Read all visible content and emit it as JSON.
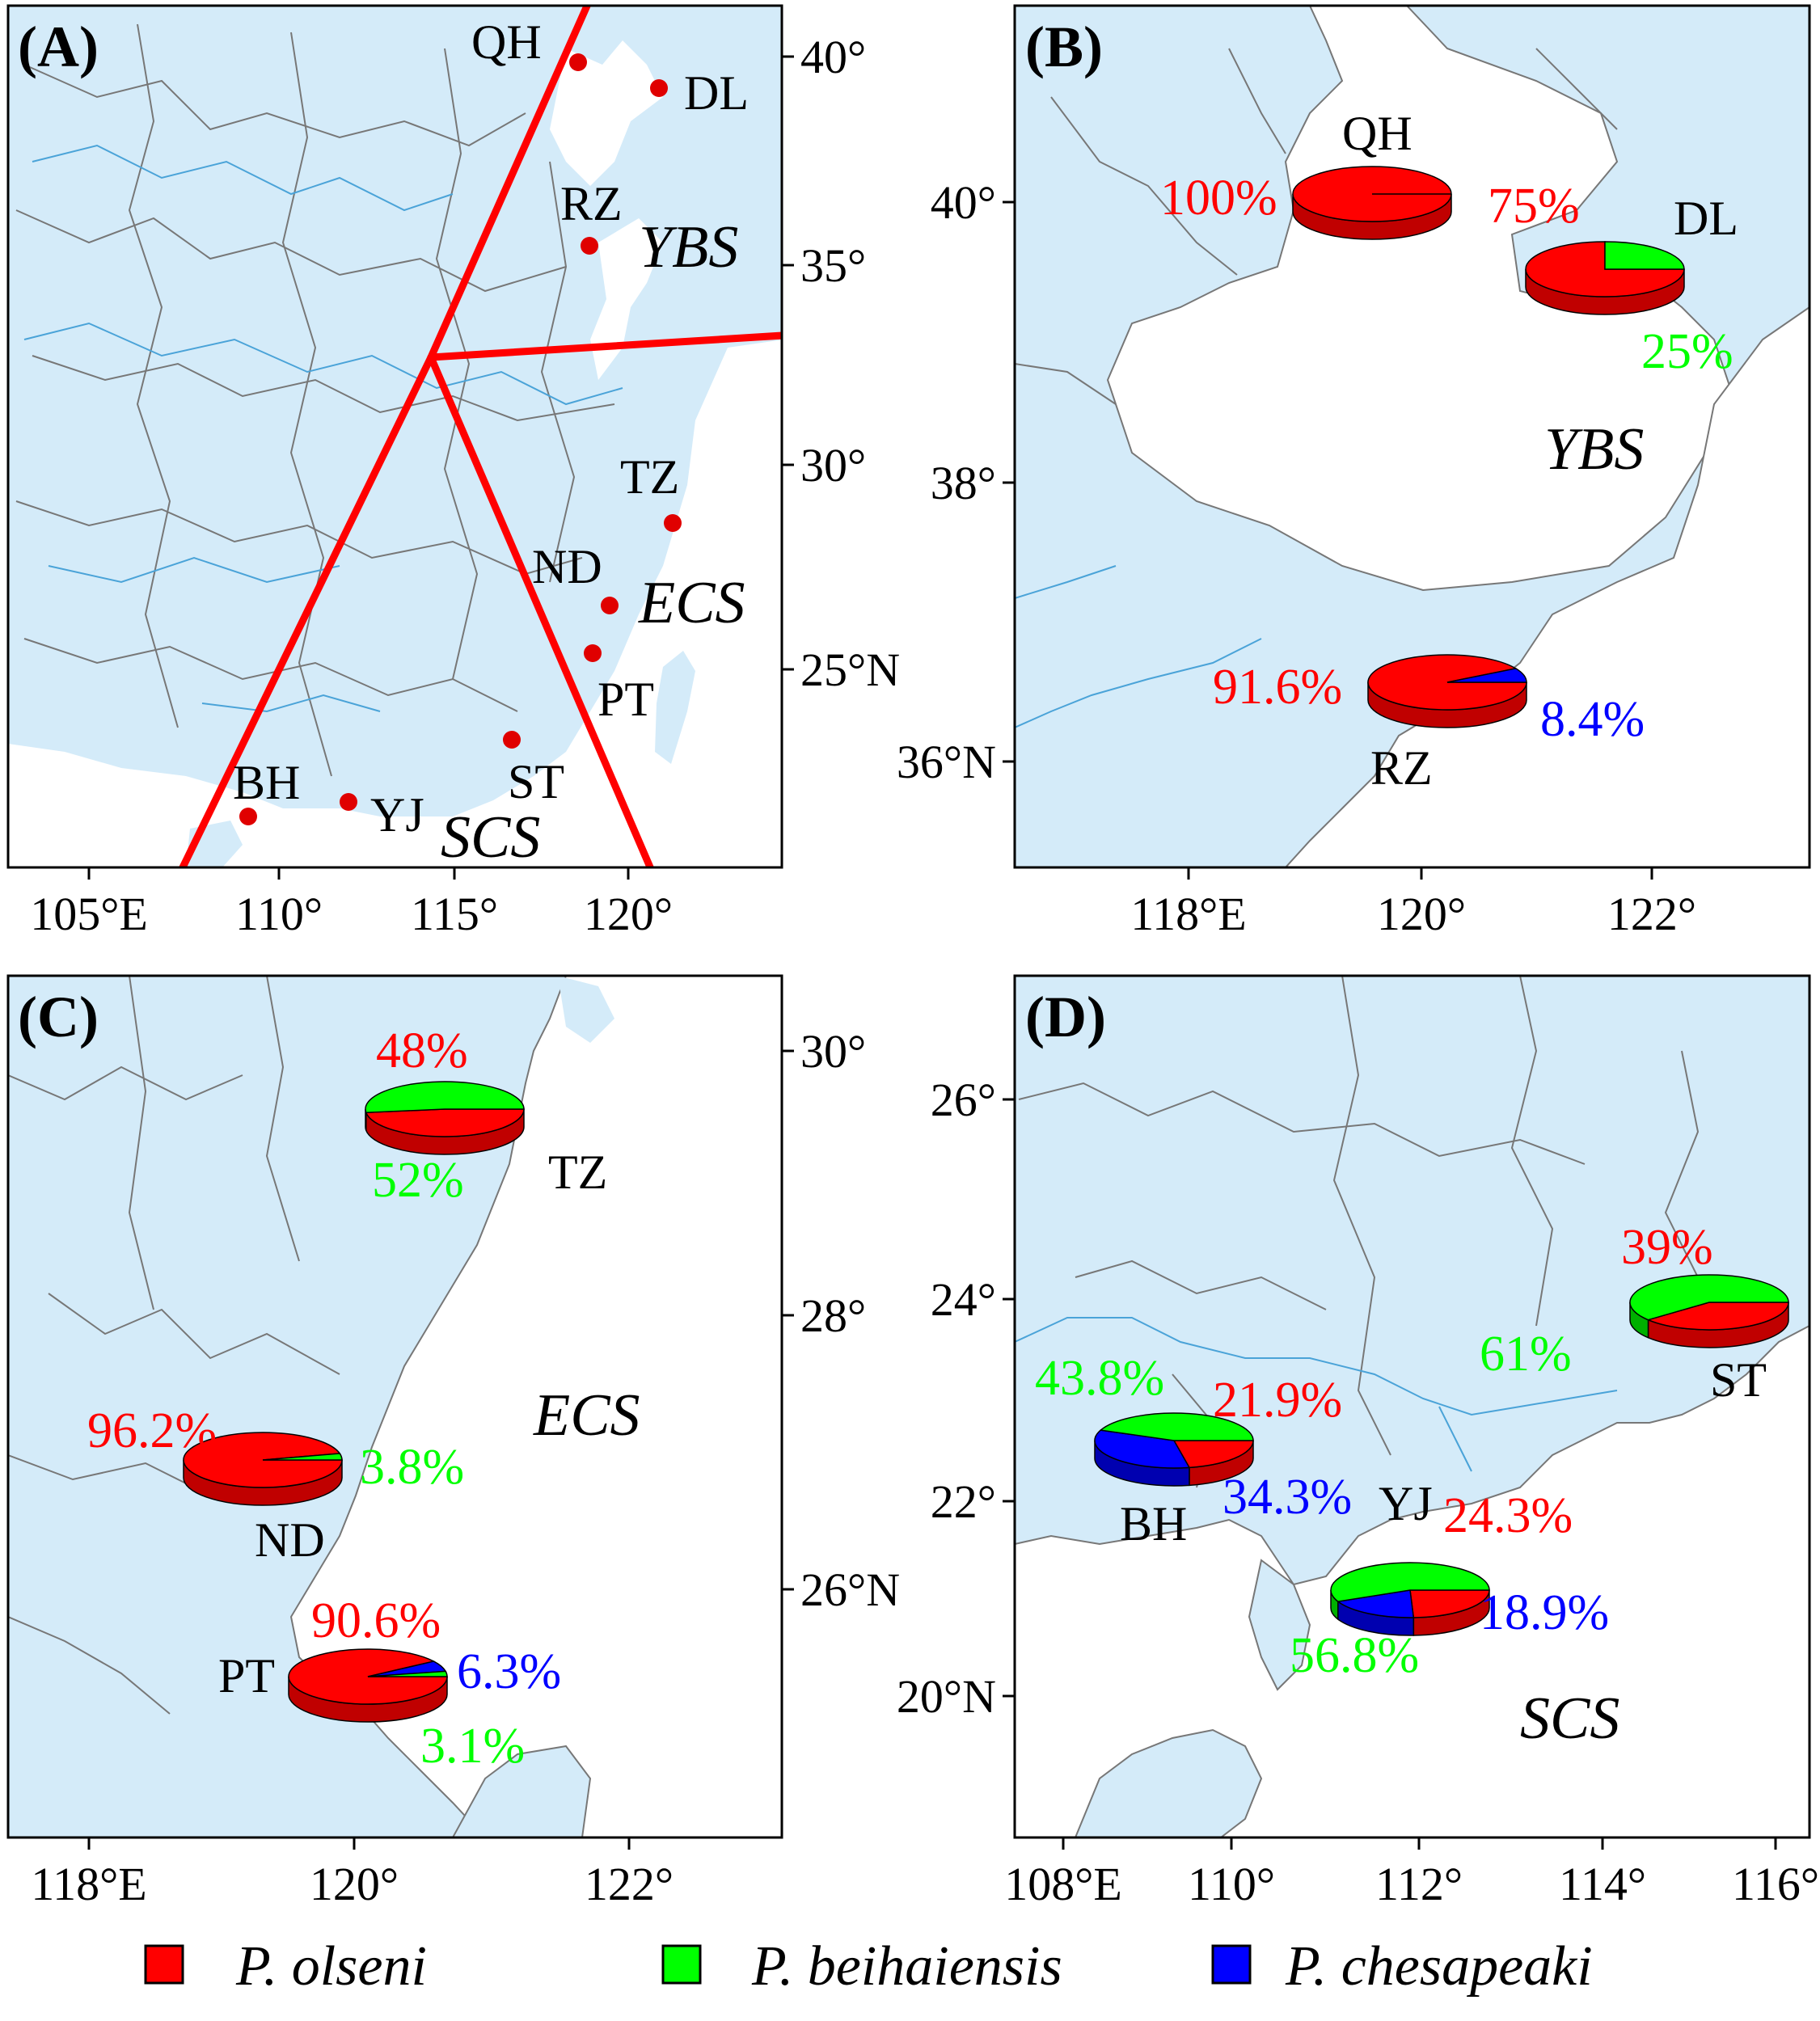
{
  "panels": {
    "A": {
      "label": "(A)",
      "x_ticks": [
        "105°E",
        "110°",
        "115°",
        "120°"
      ],
      "y_ticks": [
        "40°",
        "35°",
        "30°",
        "25°N"
      ],
      "sites": [
        "QH",
        "DL",
        "RZ",
        "TZ",
        "ND",
        "PT",
        "ST",
        "YJ",
        "BH"
      ],
      "regions": [
        "YBS",
        "ECS",
        "SCS"
      ]
    },
    "B": {
      "label": "(B)",
      "x_ticks": [
        "118°E",
        "120°",
        "122°"
      ],
      "y_ticks": [
        "40°",
        "38°",
        "36°N"
      ],
      "region": "YBS",
      "sites": [
        {
          "name": "QH",
          "olseni": 100,
          "beihaiensis": 0,
          "chesapeaki": 0,
          "labels": [
            "100%"
          ]
        },
        {
          "name": "DL",
          "olseni": 75,
          "beihaiensis": 25,
          "chesapeaki": 0,
          "labels": [
            "75%",
            "25%"
          ]
        },
        {
          "name": "RZ",
          "olseni": 91.6,
          "beihaiensis": 0,
          "chesapeaki": 8.4,
          "labels": [
            "91.6%",
            "8.4%"
          ]
        }
      ]
    },
    "C": {
      "label": "(C)",
      "x_ticks": [
        "118°E",
        "120°",
        "122°"
      ],
      "y_ticks": [
        "30°",
        "28°",
        "26°N"
      ],
      "region": "ECS",
      "sites": [
        {
          "name": "TZ",
          "olseni": 48,
          "beihaiensis": 52,
          "chesapeaki": 0,
          "labels": [
            "48%",
            "52%"
          ]
        },
        {
          "name": "ND",
          "olseni": 96.2,
          "beihaiensis": 3.8,
          "chesapeaki": 0,
          "labels": [
            "96.2%",
            "3.8%"
          ]
        },
        {
          "name": "PT",
          "olseni": 90.6,
          "beihaiensis": 3.1,
          "chesapeaki": 6.3,
          "labels": [
            "90.6%",
            "6.3%",
            "3.1%"
          ]
        }
      ]
    },
    "D": {
      "label": "(D)",
      "x_ticks": [
        "108°E",
        "110°",
        "112°",
        "114°",
        "116°"
      ],
      "y_ticks": [
        "26°",
        "24°",
        "22°",
        "20°N"
      ],
      "region": "SCS",
      "sites": [
        {
          "name": "ST",
          "olseni": 39,
          "beihaiensis": 61,
          "chesapeaki": 0,
          "labels": [
            "39%",
            "61%"
          ]
        },
        {
          "name": "BH",
          "olseni": 21.9,
          "beihaiensis": 43.8,
          "chesapeaki": 34.3,
          "labels": [
            "43.8%",
            "21.9%",
            "34.3%"
          ]
        },
        {
          "name": "YJ",
          "olseni": 24.3,
          "beihaiensis": 56.8,
          "chesapeaki": 18.9,
          "labels": [
            "24.3%",
            "56.8%",
            "18.9%"
          ]
        }
      ]
    }
  },
  "legend": {
    "items": [
      {
        "label": "P. olseni",
        "color": "#ff0000"
      },
      {
        "label": "P. beihaiensis",
        "color": "#00ff00"
      },
      {
        "label": "P. chesapeaki",
        "color": "#0000ff"
      }
    ]
  },
  "colors": {
    "land": "#d4ebf9",
    "sea": "#ffffff",
    "boundary_lines": "#ff0000",
    "site_dot": "#e00000",
    "river": "#4aa3d8",
    "border": "#777777"
  }
}
